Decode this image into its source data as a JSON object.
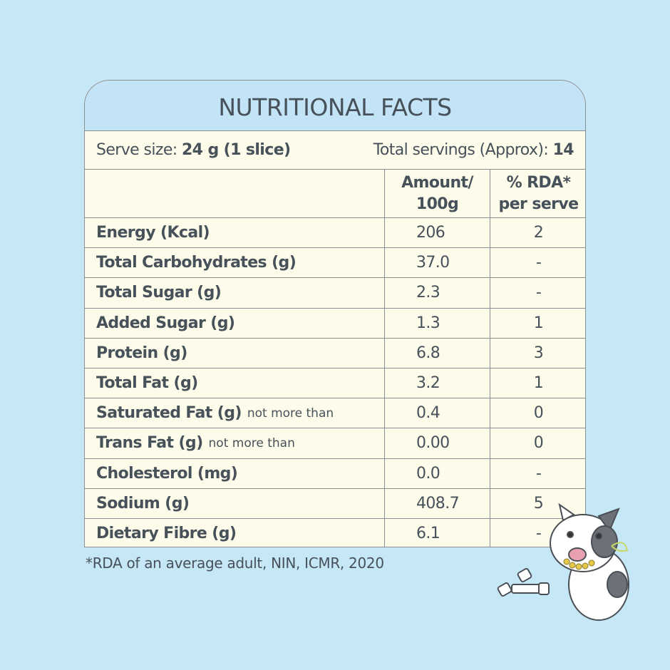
{
  "title": "NUTRITIONAL FACTS",
  "serving": {
    "size_label": "Serve size:",
    "size_value": "24 g (1 slice)",
    "total_label": "Total servings (Approx):",
    "total_value": "14"
  },
  "table": {
    "header": {
      "amount": [
        "Amount/",
        "100g"
      ],
      "rda": [
        "% RDA*",
        "per serve"
      ]
    },
    "rows": [
      {
        "name": "Energy (Kcal)",
        "amount": "206",
        "rda": "2"
      },
      {
        "name": "Total Carbohydrates (g)",
        "amount": "37.0",
        "rda": "-"
      },
      {
        "name": "Total Sugar (g)",
        "amount": "2.3",
        "rda": "-"
      },
      {
        "name": "Added Sugar (g)",
        "amount": "1.3",
        "rda": "1"
      },
      {
        "name": "Protein (g)",
        "amount": "6.8",
        "rda": "3"
      },
      {
        "name": "Total Fat (g)",
        "amount": "3.2",
        "rda": "1"
      },
      {
        "name": "Saturated Fat (g)",
        "note": "not more than",
        "amount": "0.4",
        "rda": "0"
      },
      {
        "name": "Trans Fat (g)",
        "note": "not more than",
        "amount": "0.00",
        "rda": "0"
      },
      {
        "name": "Cholesterol (mg)",
        "amount": "0.0",
        "rda": "-"
      },
      {
        "name": "Sodium (g)",
        "amount": "408.7",
        "rda": "5"
      },
      {
        "name": "Dietary Fibre (g)",
        "amount": "6.1",
        "rda": "-"
      }
    ]
  },
  "footnote": "*RDA of an average adult, NIN, ICMR, 2020"
}
